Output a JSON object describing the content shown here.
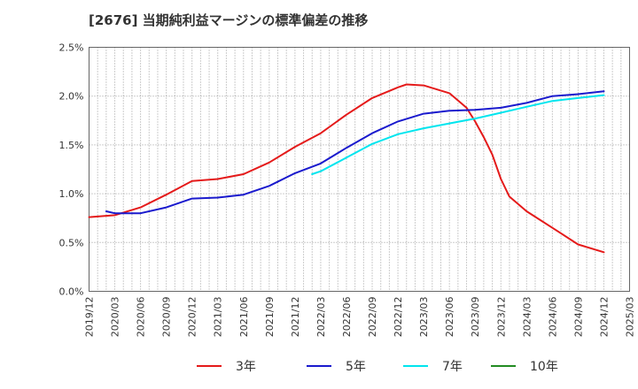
{
  "chart_data": {
    "type": "line",
    "title": "[2676]  当期純利益マージンの標準偏差の推移",
    "ylim": [
      0,
      2.5
    ],
    "y_ticks": [
      "0.0%",
      "0.5%",
      "1.0%",
      "1.5%",
      "2.0%",
      "2.5%"
    ],
    "y_tick_values": [
      0,
      0.5,
      1.0,
      1.5,
      2.0,
      2.5
    ],
    "x_ticks": [
      "2019/12",
      "2020/03",
      "2020/06",
      "2020/09",
      "2020/12",
      "2021/03",
      "2021/06",
      "2021/09",
      "2021/12",
      "2022/03",
      "2022/06",
      "2022/09",
      "2022/12",
      "2023/03",
      "2023/06",
      "2023/09",
      "2023/12",
      "2024/03",
      "2024/06",
      "2024/09",
      "2024/12",
      "2025/03"
    ],
    "grid": true,
    "legend_position": "bottom",
    "series": [
      {
        "name": "3年",
        "color": "#e41a1a",
        "x": [
          "2019/12",
          "2020/03",
          "2020/06",
          "2020/09",
          "2020/12",
          "2021/03",
          "2021/06",
          "2021/09",
          "2021/12",
          "2022/03",
          "2022/06",
          "2022/09",
          "2022/12",
          "2023/01",
          "2023/03",
          "2023/06",
          "2023/08",
          "2023/09",
          "2023/10",
          "2023/11",
          "2023/12",
          "2024/01",
          "2024/03",
          "2024/06",
          "2024/09",
          "2024/12"
        ],
        "values": [
          0.76,
          0.78,
          0.86,
          0.99,
          1.13,
          1.15,
          1.2,
          1.32,
          1.48,
          1.62,
          1.81,
          1.98,
          2.09,
          2.12,
          2.11,
          2.03,
          1.88,
          1.74,
          1.58,
          1.4,
          1.15,
          0.97,
          0.82,
          0.65,
          0.48,
          0.4
        ]
      },
      {
        "name": "5年",
        "color": "#1a1acd",
        "x": [
          "2020/02",
          "2020/03",
          "2020/06",
          "2020/09",
          "2020/12",
          "2021/03",
          "2021/06",
          "2021/09",
          "2021/12",
          "2022/03",
          "2022/06",
          "2022/09",
          "2022/12",
          "2023/03",
          "2023/06",
          "2023/09",
          "2023/12",
          "2024/03",
          "2024/06",
          "2024/09",
          "2024/12"
        ],
        "values": [
          0.82,
          0.8,
          0.8,
          0.86,
          0.95,
          0.96,
          0.99,
          1.08,
          1.21,
          1.31,
          1.47,
          1.62,
          1.74,
          1.82,
          1.85,
          1.86,
          1.88,
          1.93,
          2.0,
          2.02,
          2.05
        ]
      },
      {
        "name": "7年",
        "color": "#00e5ee",
        "x": [
          "2022/02",
          "2022/03",
          "2022/06",
          "2022/09",
          "2022/12",
          "2023/03",
          "2023/06",
          "2023/09",
          "2023/12",
          "2024/03",
          "2024/06",
          "2024/09",
          "2024/12"
        ],
        "values": [
          1.2,
          1.23,
          1.37,
          1.51,
          1.61,
          1.67,
          1.72,
          1.77,
          1.83,
          1.89,
          1.95,
          1.98,
          2.01
        ]
      },
      {
        "name": "10年",
        "color": "#228b22",
        "x": [],
        "values": []
      }
    ]
  }
}
